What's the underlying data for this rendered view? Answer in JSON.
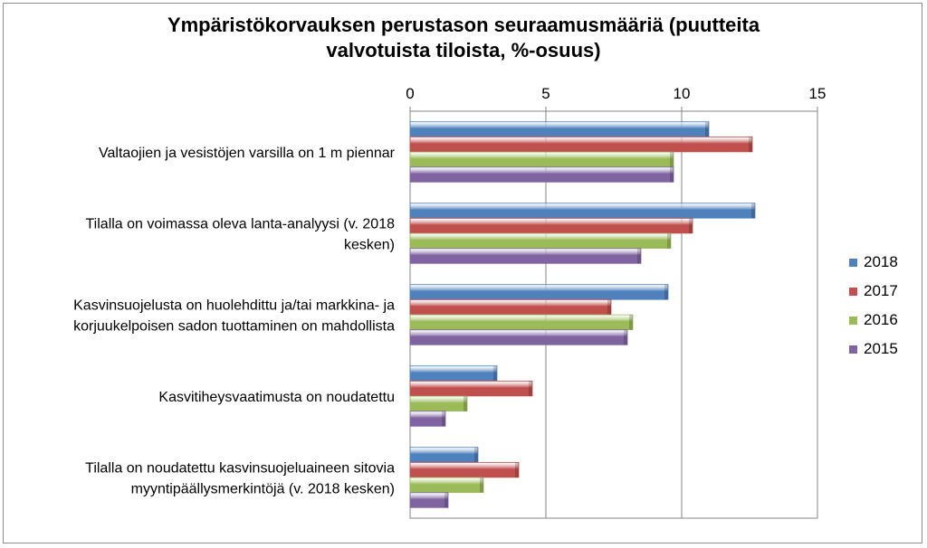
{
  "chart_data": {
    "type": "bar",
    "orientation": "horizontal",
    "title_lines": [
      "Ympäristökorvauksen perustason seuraamusmääriä (puutteita",
      "valvotuista tiloista, %-osuus)"
    ],
    "x_ticks": [
      "0",
      "5",
      "10",
      "15"
    ],
    "xlim": [
      0,
      15
    ],
    "x_axis_position": "top",
    "grid": true,
    "legend_position": "right",
    "categories": [
      [
        "Valtaojien ja vesistöjen varsilla on 1 m piennar"
      ],
      [
        "Tilalla on voimassa oleva lanta-analyysi (v. 2018",
        "kesken)"
      ],
      [
        "Kasvinsuojelusta on huolehdittu ja/tai markkina- ja",
        "korjuukelpoisen sadon tuottaminen on mahdollista"
      ],
      [
        "Kasvitiheysvaatimusta on noudatettu"
      ],
      [
        "Tilalla on noudatettu kasvinsuojeluaineen sitovia",
        "myyntipäällysmerkintöjä (v. 2018 kesken)"
      ]
    ],
    "series": [
      {
        "name": "2018",
        "color": "#4f81bd",
        "values": [
          11.0,
          12.7,
          9.5,
          3.2,
          2.5
        ]
      },
      {
        "name": "2017",
        "color": "#c0504d",
        "values": [
          12.6,
          10.4,
          7.4,
          4.5,
          4.0
        ]
      },
      {
        "name": "2016",
        "color": "#9bbb59",
        "values": [
          9.7,
          9.6,
          8.2,
          2.1,
          2.7
        ]
      },
      {
        "name": "2015",
        "color": "#8064a2",
        "values": [
          9.7,
          8.5,
          8.0,
          1.3,
          1.4
        ]
      }
    ]
  }
}
